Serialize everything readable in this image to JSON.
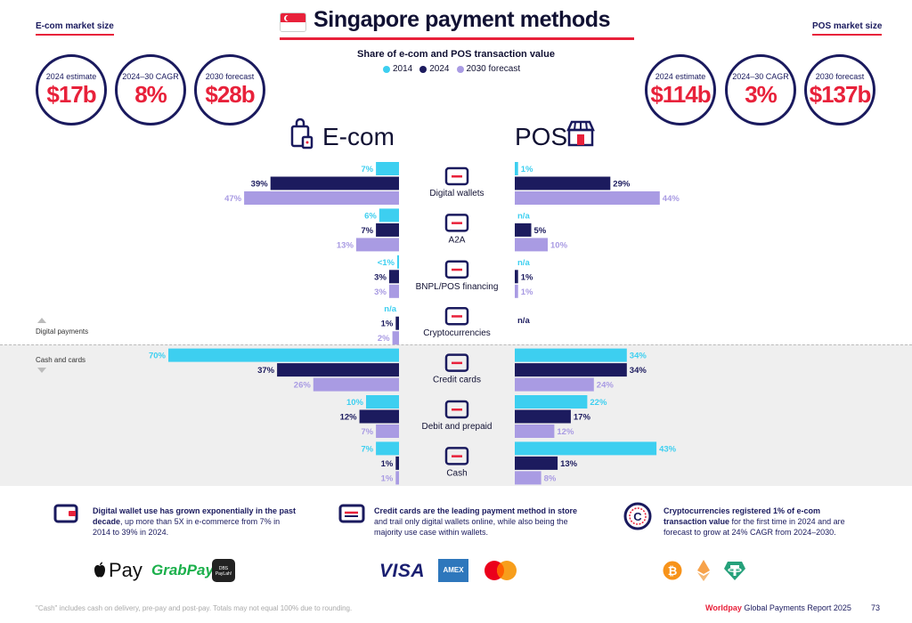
{
  "header": {
    "title": "Singapore payment methods",
    "ecom_market_label": "E-com market size",
    "pos_market_label": "POS market size"
  },
  "ecom_stats": [
    {
      "label": "2024 estimate",
      "value": "$17b"
    },
    {
      "label": "2024–30 CAGR",
      "value": "8%"
    },
    {
      "label": "2030 forecast",
      "value": "$28b"
    }
  ],
  "pos_stats": [
    {
      "label": "2024 estimate",
      "value": "$114b"
    },
    {
      "label": "2024–30 CAGR",
      "value": "3%"
    },
    {
      "label": "2030 forecast",
      "value": "$137b"
    }
  ],
  "section_labels": {
    "ecom": "E-com",
    "pos": "POS",
    "digital": "Digital payments",
    "cash_cards": "Cash and cards"
  },
  "colors": {
    "y2014": "#3dcff0",
    "y2024": "#1c1b5e",
    "y2030": "#a99be3",
    "accent": "#e8213a"
  },
  "chart_data": {
    "type": "bar",
    "title": "Share of e-com and POS transaction value",
    "series_names": [
      "2014",
      "2024",
      "2030 forecast"
    ],
    "categories": [
      "Digital wallets",
      "A2A",
      "BNPL/POS financing",
      "Cryptocurrencies",
      "Credit cards",
      "Debit and prepaid",
      "Cash"
    ],
    "ecom": {
      "values": [
        [
          7,
          39,
          47
        ],
        [
          6,
          7,
          13
        ],
        [
          0.5,
          3,
          3
        ],
        [
          null,
          1,
          2
        ],
        [
          70,
          37,
          26
        ],
        [
          10,
          12,
          7
        ],
        [
          7,
          1,
          1
        ]
      ],
      "labels": [
        [
          "7%",
          "39%",
          "47%"
        ],
        [
          "6%",
          "7%",
          "13%"
        ],
        [
          "<1%",
          "3%",
          "3%"
        ],
        [
          "n/a",
          "1%",
          "2%"
        ],
        [
          "70%",
          "37%",
          "26%"
        ],
        [
          "10%",
          "12%",
          "7%"
        ],
        [
          "7%",
          "1%",
          "1%"
        ]
      ]
    },
    "pos": {
      "values": [
        [
          1,
          29,
          44
        ],
        [
          null,
          5,
          10
        ],
        [
          null,
          1,
          1
        ],
        [
          null,
          null,
          null
        ],
        [
          34,
          34,
          24
        ],
        [
          22,
          17,
          12
        ],
        [
          43,
          13,
          8
        ]
      ],
      "labels": [
        [
          "1%",
          "29%",
          "44%"
        ],
        [
          "n/a",
          "5%",
          "10%"
        ],
        [
          "n/a",
          "1%",
          "1%"
        ],
        [
          "n/a",
          "",
          ""
        ],
        [
          "34%",
          "34%",
          "24%"
        ],
        [
          "22%",
          "17%",
          "12%"
        ],
        [
          "43%",
          "13%",
          "8%"
        ]
      ]
    }
  },
  "insights": [
    {
      "bold": "Digital wallet use has grown exponentially in the past decade",
      "rest": ", up more than 5X in e-commerce from 7% in 2014 to 39% in 2024."
    },
    {
      "bold": "Credit cards are the leading payment method in store",
      "rest": " and trail only digital wallets online, while also being the majority use case within wallets."
    },
    {
      "bold": "Cryptocurrencies registered 1% of e-com transaction value",
      "rest": " for the first time in 2024 and are forecast to grow at 24% CAGR from 2024–2030."
    }
  ],
  "logos": {
    "apple_pay": "Pay",
    "grab_pay": "GrabPay",
    "dbs": "DBS PayLah!",
    "visa": "VISA",
    "amex": "AMEX"
  },
  "footer": {
    "note": "\"Cash\" includes cash on delivery, pre-pay and post-pay. Totals may not equal 100% due to rounding.",
    "brand": "Worldpay",
    "report": " Global Payments Report 2025",
    "page": "73"
  }
}
